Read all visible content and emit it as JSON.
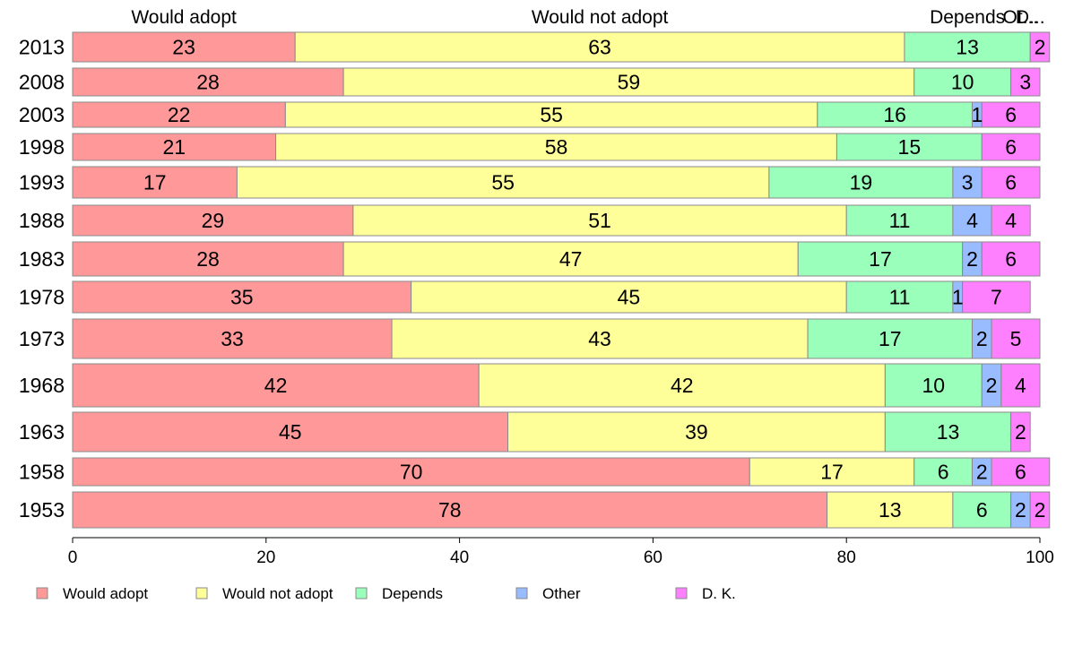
{
  "chart_data": {
    "type": "bar",
    "orientation": "horizontal",
    "stacked": true,
    "top_headers": [
      "Would adopt",
      "Would not adopt",
      "Depends",
      "Ot...",
      "D..."
    ],
    "categories": [
      "2013",
      "2008",
      "2003",
      "1998",
      "1993",
      "1988",
      "1983",
      "1978",
      "1973",
      "1968",
      "1963",
      "1958",
      "1953"
    ],
    "series": [
      {
        "name": "Would adopt",
        "color": "#ff9999",
        "values": [
          23,
          28,
          22,
          21,
          17,
          29,
          28,
          35,
          33,
          42,
          45,
          70,
          78
        ]
      },
      {
        "name": "Would not adopt",
        "color": "#ffff99",
        "values": [
          63,
          59,
          55,
          58,
          55,
          51,
          47,
          45,
          43,
          42,
          39,
          17,
          13
        ]
      },
      {
        "name": "Depends",
        "color": "#99ffbb",
        "values": [
          13,
          10,
          16,
          15,
          19,
          11,
          17,
          11,
          17,
          10,
          13,
          6,
          6
        ]
      },
      {
        "name": "Other",
        "color": "#99bbff",
        "values": [
          0,
          0,
          1,
          0,
          3,
          4,
          2,
          1,
          2,
          2,
          0,
          2,
          2
        ]
      },
      {
        "name": "D. K.",
        "color": "#ff80ff",
        "values": [
          2,
          3,
          6,
          6,
          6,
          4,
          6,
          7,
          5,
          4,
          2,
          6,
          2
        ]
      }
    ],
    "xlim": [
      0,
      100
    ],
    "xticks": [
      0,
      20,
      40,
      60,
      80,
      100
    ],
    "legend_position": "bottom",
    "grid": false
  }
}
